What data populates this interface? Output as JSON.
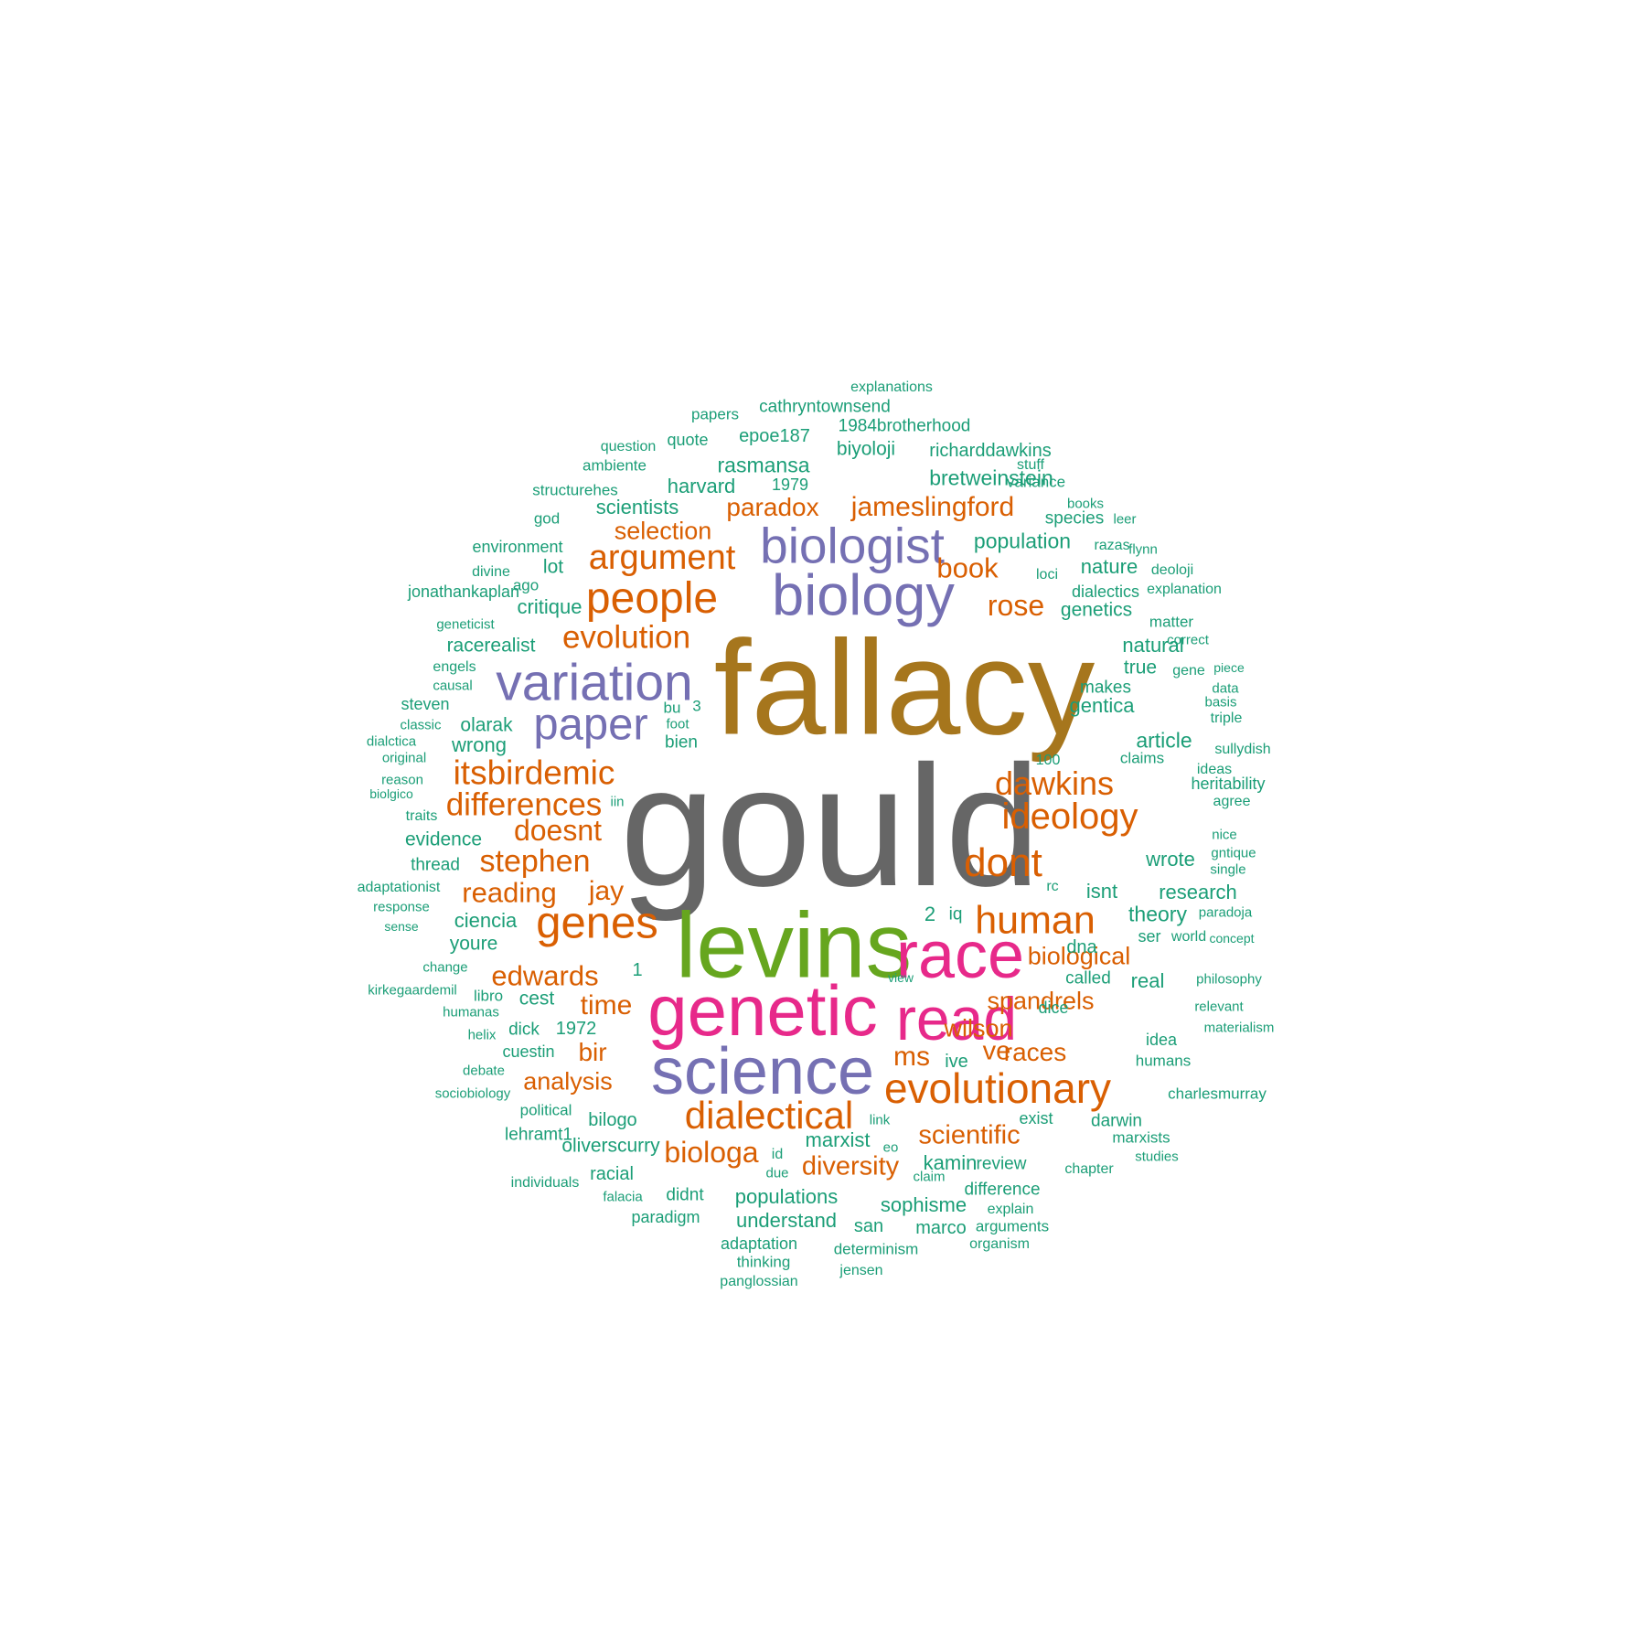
{
  "colors": {
    "background": "#ffffff",
    "tier1": "#666666",
    "tier2": "#A6761D",
    "tier3": "#66A61E",
    "tier4": "#E7298A",
    "tier5": "#7570B3",
    "tier6": "#D95F02",
    "tier7": "#1B9E77"
  },
  "words": [
    {
      "text": "gould",
      "color": "tier1"
    },
    {
      "text": "fallacy",
      "color": "tier2"
    },
    {
      "text": "levins",
      "color": "tier3"
    },
    {
      "text": "genetic",
      "color": "tier4"
    },
    {
      "text": "race",
      "color": "tier4"
    },
    {
      "text": "read",
      "color": "tier4"
    },
    {
      "text": "science",
      "color": "tier5"
    },
    {
      "text": "biology",
      "color": "tier5"
    },
    {
      "text": "variation",
      "color": "tier5"
    },
    {
      "text": "biologist",
      "color": "tier5"
    },
    {
      "text": "paper",
      "color": "tier5"
    },
    {
      "text": "people",
      "color": "tier6"
    },
    {
      "text": "evolutionary",
      "color": "tier6"
    },
    {
      "text": "dialectical",
      "color": "tier6"
    },
    {
      "text": "human",
      "color": "tier6"
    },
    {
      "text": "genes",
      "color": "tier6"
    },
    {
      "text": "dont",
      "color": "tier6"
    },
    {
      "text": "argument",
      "color": "tier6"
    },
    {
      "text": "ideology",
      "color": "tier6"
    },
    {
      "text": "dawkins",
      "color": "tier6"
    },
    {
      "text": "evolution",
      "color": "tier6"
    },
    {
      "text": "itsbirdemic",
      "color": "tier6"
    },
    {
      "text": "differences",
      "color": "tier6"
    },
    {
      "text": "biologa",
      "color": "tier6"
    },
    {
      "text": "jameslingford",
      "color": "tier6"
    },
    {
      "text": "doesnt",
      "color": "tier6"
    },
    {
      "text": "stephen",
      "color": "tier6"
    },
    {
      "text": "rose",
      "color": "tier6"
    },
    {
      "text": "scientific",
      "color": "tier6"
    },
    {
      "text": "diversity",
      "color": "tier6"
    },
    {
      "text": "edwards",
      "color": "tier6"
    },
    {
      "text": "reading",
      "color": "tier6"
    },
    {
      "text": "jay",
      "color": "tier6"
    },
    {
      "text": "paradox",
      "color": "tier6"
    },
    {
      "text": "time",
      "color": "tier6"
    },
    {
      "text": "ve",
      "color": "tier6"
    },
    {
      "text": "ms",
      "color": "tier6"
    },
    {
      "text": "spandrels",
      "color": "tier6"
    },
    {
      "text": "analysis",
      "color": "tier6"
    },
    {
      "text": "book",
      "color": "tier6"
    },
    {
      "text": "selection",
      "color": "tier6"
    },
    {
      "text": "biological",
      "color": "tier6"
    },
    {
      "text": "races",
      "color": "tier6"
    },
    {
      "text": "wilson",
      "color": "tier6"
    },
    {
      "text": "bir",
      "color": "tier6"
    },
    {
      "text": "explanations",
      "color": "tier7"
    },
    {
      "text": "papers",
      "color": "tier7"
    },
    {
      "text": "cathryntownsend",
      "color": "tier7"
    },
    {
      "text": "quote",
      "color": "tier7"
    },
    {
      "text": "epoe187",
      "color": "tier7"
    },
    {
      "text": "1984brotherhood",
      "color": "tier7"
    },
    {
      "text": "question",
      "color": "tier7"
    },
    {
      "text": "ambiente",
      "color": "tier7"
    },
    {
      "text": "rasmansa",
      "color": "tier7"
    },
    {
      "text": "biyoloji",
      "color": "tier7"
    },
    {
      "text": "richarddawkins",
      "color": "tier7"
    },
    {
      "text": "stuff",
      "color": "tier7"
    },
    {
      "text": "structurehes",
      "color": "tier7"
    },
    {
      "text": "harvard",
      "color": "tier7"
    },
    {
      "text": "1979",
      "color": "tier7"
    },
    {
      "text": "bretweinstein",
      "color": "tier7"
    },
    {
      "text": "variance",
      "color": "tier7"
    },
    {
      "text": "god",
      "color": "tier7"
    },
    {
      "text": "scientists",
      "color": "tier7"
    },
    {
      "text": "species",
      "color": "tier7"
    },
    {
      "text": "books",
      "color": "tier7"
    },
    {
      "text": "leer",
      "color": "tier7"
    },
    {
      "text": "environment",
      "color": "tier7"
    },
    {
      "text": "population",
      "color": "tier7"
    },
    {
      "text": "razas",
      "color": "tier7"
    },
    {
      "text": "flynn",
      "color": "tier7"
    },
    {
      "text": "divine",
      "color": "tier7"
    },
    {
      "text": "ago",
      "color": "tier7"
    },
    {
      "text": "lot",
      "color": "tier7"
    },
    {
      "text": "loci",
      "color": "tier7"
    },
    {
      "text": "nature",
      "color": "tier7"
    },
    {
      "text": "deoloji",
      "color": "tier7"
    },
    {
      "text": "jonathankaplan",
      "color": "tier7"
    },
    {
      "text": "dialectics",
      "color": "tier7"
    },
    {
      "text": "explanation",
      "color": "tier7"
    },
    {
      "text": "critique",
      "color": "tier7"
    },
    {
      "text": "genetics",
      "color": "tier7"
    },
    {
      "text": "geneticist",
      "color": "tier7"
    },
    {
      "text": "matter",
      "color": "tier7"
    },
    {
      "text": "racerealist",
      "color": "tier7"
    },
    {
      "text": "natural",
      "color": "tier7"
    },
    {
      "text": "correct",
      "color": "tier7"
    },
    {
      "text": "engels",
      "color": "tier7"
    },
    {
      "text": "true",
      "color": "tier7"
    },
    {
      "text": "gene",
      "color": "tier7"
    },
    {
      "text": "piece",
      "color": "tier7"
    },
    {
      "text": "causal",
      "color": "tier7"
    },
    {
      "text": "makes",
      "color": "tier7"
    },
    {
      "text": "data",
      "color": "tier7"
    },
    {
      "text": "steven",
      "color": "tier7"
    },
    {
      "text": "bu",
      "color": "tier7"
    },
    {
      "text": "3",
      "color": "tier7"
    },
    {
      "text": "gentica",
      "color": "tier7"
    },
    {
      "text": "basis",
      "color": "tier7"
    },
    {
      "text": "classic",
      "color": "tier7"
    },
    {
      "text": "olarak",
      "color": "tier7"
    },
    {
      "text": "foot",
      "color": "tier7"
    },
    {
      "text": "triple",
      "color": "tier7"
    },
    {
      "text": "dialctica",
      "color": "tier7"
    },
    {
      "text": "wrong",
      "color": "tier7"
    },
    {
      "text": "bien",
      "color": "tier7"
    },
    {
      "text": "article",
      "color": "tier7"
    },
    {
      "text": "original",
      "color": "tier7"
    },
    {
      "text": "100",
      "color": "tier7"
    },
    {
      "text": "claims",
      "color": "tier7"
    },
    {
      "text": "sullydish",
      "color": "tier7"
    },
    {
      "text": "ideas",
      "color": "tier7"
    },
    {
      "text": "reason",
      "color": "tier7"
    },
    {
      "text": "heritability",
      "color": "tier7"
    },
    {
      "text": "biolgico",
      "color": "tier7"
    },
    {
      "text": "iin",
      "color": "tier7"
    },
    {
      "text": "agree",
      "color": "tier7"
    },
    {
      "text": "traits",
      "color": "tier7"
    },
    {
      "text": "evidence",
      "color": "tier7"
    },
    {
      "text": "nice",
      "color": "tier7"
    },
    {
      "text": "gntique",
      "color": "tier7"
    },
    {
      "text": "thread",
      "color": "tier7"
    },
    {
      "text": "wrote",
      "color": "tier7"
    },
    {
      "text": "single",
      "color": "tier7"
    },
    {
      "text": "adaptationist",
      "color": "tier7"
    },
    {
      "text": "rc",
      "color": "tier7"
    },
    {
      "text": "isnt",
      "color": "tier7"
    },
    {
      "text": "research",
      "color": "tier7"
    },
    {
      "text": "response",
      "color": "tier7"
    },
    {
      "text": "2",
      "color": "tier7"
    },
    {
      "text": "iq",
      "color": "tier7"
    },
    {
      "text": "theory",
      "color": "tier7"
    },
    {
      "text": "paradoja",
      "color": "tier7"
    },
    {
      "text": "ciencia",
      "color": "tier7"
    },
    {
      "text": "sense",
      "color": "tier7"
    },
    {
      "text": "ser",
      "color": "tier7"
    },
    {
      "text": "world",
      "color": "tier7"
    },
    {
      "text": "concept",
      "color": "tier7"
    },
    {
      "text": "youre",
      "color": "tier7"
    },
    {
      "text": "dna",
      "color": "tier7"
    },
    {
      "text": "change",
      "color": "tier7"
    },
    {
      "text": "1",
      "color": "tier7"
    },
    {
      "text": "view",
      "color": "tier7"
    },
    {
      "text": "called",
      "color": "tier7"
    },
    {
      "text": "real",
      "color": "tier7"
    },
    {
      "text": "philosophy",
      "color": "tier7"
    },
    {
      "text": "kirkegaardemil",
      "color": "tier7"
    },
    {
      "text": "libro",
      "color": "tier7"
    },
    {
      "text": "cest",
      "color": "tier7"
    },
    {
      "text": "humanas",
      "color": "tier7"
    },
    {
      "text": "dice",
      "color": "tier7"
    },
    {
      "text": "relevant",
      "color": "tier7"
    },
    {
      "text": "dick",
      "color": "tier7"
    },
    {
      "text": "1972",
      "color": "tier7"
    },
    {
      "text": "helix",
      "color": "tier7"
    },
    {
      "text": "materialism",
      "color": "tier7"
    },
    {
      "text": "idea",
      "color": "tier7"
    },
    {
      "text": "cuestin",
      "color": "tier7"
    },
    {
      "text": "ive",
      "color": "tier7"
    },
    {
      "text": "humans",
      "color": "tier7"
    },
    {
      "text": "debate",
      "color": "tier7"
    },
    {
      "text": "sociobiology",
      "color": "tier7"
    },
    {
      "text": "charlesmurray",
      "color": "tier7"
    },
    {
      "text": "political",
      "color": "tier7"
    },
    {
      "text": "bilogo",
      "color": "tier7"
    },
    {
      "text": "link",
      "color": "tier7"
    },
    {
      "text": "exist",
      "color": "tier7"
    },
    {
      "text": "darwin",
      "color": "tier7"
    },
    {
      "text": "lehramt1",
      "color": "tier7"
    },
    {
      "text": "marxist",
      "color": "tier7"
    },
    {
      "text": "marxists",
      "color": "tier7"
    },
    {
      "text": "oliverscurry",
      "color": "tier7"
    },
    {
      "text": "id",
      "color": "tier7"
    },
    {
      "text": "eo",
      "color": "tier7"
    },
    {
      "text": "kamin",
      "color": "tier7"
    },
    {
      "text": "studies",
      "color": "tier7"
    },
    {
      "text": "review",
      "color": "tier7"
    },
    {
      "text": "chapter",
      "color": "tier7"
    },
    {
      "text": "racial",
      "color": "tier7"
    },
    {
      "text": "individuals",
      "color": "tier7"
    },
    {
      "text": "due",
      "color": "tier7"
    },
    {
      "text": "claim",
      "color": "tier7"
    },
    {
      "text": "difference",
      "color": "tier7"
    },
    {
      "text": "falacia",
      "color": "tier7"
    },
    {
      "text": "didnt",
      "color": "tier7"
    },
    {
      "text": "populations",
      "color": "tier7"
    },
    {
      "text": "sophisme",
      "color": "tier7"
    },
    {
      "text": "explain",
      "color": "tier7"
    },
    {
      "text": "paradigm",
      "color": "tier7"
    },
    {
      "text": "understand",
      "color": "tier7"
    },
    {
      "text": "san",
      "color": "tier7"
    },
    {
      "text": "marco",
      "color": "tier7"
    },
    {
      "text": "arguments",
      "color": "tier7"
    },
    {
      "text": "adaptation",
      "color": "tier7"
    },
    {
      "text": "organism",
      "color": "tier7"
    },
    {
      "text": "thinking",
      "color": "tier7"
    },
    {
      "text": "determinism",
      "color": "tier7"
    },
    {
      "text": "jensen",
      "color": "tier7"
    },
    {
      "text": "panglossian",
      "color": "tier7"
    }
  ]
}
